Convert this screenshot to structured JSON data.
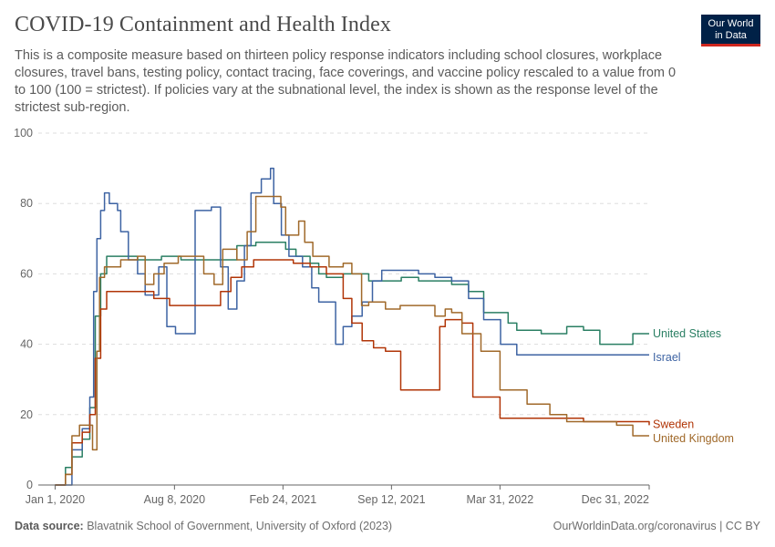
{
  "header": {
    "title": "COVID-19 Containment and Health Index",
    "subtitle": "This is a composite measure based on thirteen policy response indicators including school closures, workplace closures, travel bans, testing policy, contact tracing, face coverings, and vaccine policy rescaled to a value from 0 to 100 (100 = strictest). If policies vary at the subnational level, the index is shown as the response level of the strictest sub-region."
  },
  "logo": {
    "line1": "Our World",
    "line2": "in Data"
  },
  "footer": {
    "source_label": "Data source:",
    "source_text": "Blavatnik School of Government, University of Oxford (2023)",
    "right_text": "OurWorldinData.org/coronavirus | CC BY"
  },
  "colors": {
    "grid": "#dddddd",
    "axis": "#666666",
    "text": "#5b5b5b",
    "United States": "#2a7f63",
    "Israel": "#3d63a3",
    "Sweden": "#b13507",
    "United Kingdom": "#a0692a"
  },
  "chart_data": {
    "type": "line",
    "x_ticks": [
      "Jan 1, 2020",
      "Aug 8, 2020",
      "Feb 24, 2021",
      "Sep 12, 2021",
      "Mar 31, 2022",
      "Dec 31, 2022"
    ],
    "y_ticks": [
      "0",
      "20",
      "40",
      "60",
      "80",
      "100"
    ],
    "xlim": [
      "2019-12-01",
      "2022-12-31"
    ],
    "ylim": [
      0,
      100
    ],
    "grid": true,
    "legend": "end-of-line labels",
    "series": [
      {
        "name": "United States",
        "points": [
          [
            "2020-01-01",
            0
          ],
          [
            "2020-01-10",
            0
          ],
          [
            "2020-01-20",
            5
          ],
          [
            "2020-02-01",
            8
          ],
          [
            "2020-02-20",
            13
          ],
          [
            "2020-03-05",
            22
          ],
          [
            "2020-03-15",
            48
          ],
          [
            "2020-03-25",
            60
          ],
          [
            "2020-04-05",
            65
          ],
          [
            "2020-05-01",
            65
          ],
          [
            "2020-06-01",
            64
          ],
          [
            "2020-07-15",
            65
          ],
          [
            "2020-08-20",
            64
          ],
          [
            "2020-09-20",
            64
          ],
          [
            "2020-11-01",
            64
          ],
          [
            "2020-12-01",
            68
          ],
          [
            "2021-01-05",
            69
          ],
          [
            "2021-02-01",
            69
          ],
          [
            "2021-03-01",
            67
          ],
          [
            "2021-03-20",
            65
          ],
          [
            "2021-04-15",
            63
          ],
          [
            "2021-05-01",
            60
          ],
          [
            "2021-05-15",
            59
          ],
          [
            "2021-06-15",
            60
          ],
          [
            "2021-07-15",
            60
          ],
          [
            "2021-08-01",
            58
          ],
          [
            "2021-09-01",
            58
          ],
          [
            "2021-09-30",
            59
          ],
          [
            "2021-11-01",
            58
          ],
          [
            "2021-12-15",
            58
          ],
          [
            "2022-01-01",
            57
          ],
          [
            "2022-02-01",
            55
          ],
          [
            "2022-03-01",
            49
          ],
          [
            "2022-03-20",
            49
          ],
          [
            "2022-04-15",
            46
          ],
          [
            "2022-05-01",
            44
          ],
          [
            "2022-06-15",
            43
          ],
          [
            "2022-08-01",
            45
          ],
          [
            "2022-09-01",
            44
          ],
          [
            "2022-10-01",
            40
          ],
          [
            "2022-11-20",
            40
          ],
          [
            "2022-12-01",
            43
          ],
          [
            "2022-12-31",
            43
          ]
        ]
      },
      {
        "name": "Israel",
        "points": [
          [
            "2020-01-01",
            0
          ],
          [
            "2020-01-20",
            0
          ],
          [
            "2020-02-01",
            10
          ],
          [
            "2020-02-20",
            16
          ],
          [
            "2020-03-05",
            25
          ],
          [
            "2020-03-12",
            55
          ],
          [
            "2020-03-18",
            70
          ],
          [
            "2020-03-25",
            78
          ],
          [
            "2020-04-01",
            83
          ],
          [
            "2020-04-10",
            80
          ],
          [
            "2020-04-25",
            78
          ],
          [
            "2020-05-01",
            72
          ],
          [
            "2020-05-15",
            64
          ],
          [
            "2020-06-01",
            60
          ],
          [
            "2020-06-15",
            54
          ],
          [
            "2020-07-10",
            62
          ],
          [
            "2020-07-25",
            45
          ],
          [
            "2020-08-10",
            43
          ],
          [
            "2020-09-05",
            43
          ],
          [
            "2020-09-15",
            78
          ],
          [
            "2020-10-15",
            79
          ],
          [
            "2020-11-01",
            62
          ],
          [
            "2020-11-15",
            50
          ],
          [
            "2020-12-01",
            58
          ],
          [
            "2020-12-15",
            68
          ],
          [
            "2020-12-27",
            83
          ],
          [
            "2021-01-15",
            87
          ],
          [
            "2021-02-01",
            90
          ],
          [
            "2021-02-07",
            80
          ],
          [
            "2021-02-21",
            71
          ],
          [
            "2021-03-07",
            65
          ],
          [
            "2021-04-01",
            62
          ],
          [
            "2021-04-18",
            56
          ],
          [
            "2021-05-01",
            52
          ],
          [
            "2021-06-01",
            40
          ],
          [
            "2021-06-15",
            45
          ],
          [
            "2021-07-01",
            48
          ],
          [
            "2021-07-20",
            52
          ],
          [
            "2021-08-08",
            58
          ],
          [
            "2021-08-25",
            61
          ],
          [
            "2021-10-01",
            61
          ],
          [
            "2021-11-01",
            60
          ],
          [
            "2021-12-01",
            59
          ],
          [
            "2022-01-01",
            58
          ],
          [
            "2022-02-01",
            53
          ],
          [
            "2022-03-01",
            47
          ],
          [
            "2022-04-01",
            40
          ],
          [
            "2022-05-01",
            37
          ],
          [
            "2022-12-31",
            37
          ]
        ]
      },
      {
        "name": "Sweden",
        "points": [
          [
            "2020-01-01",
            0
          ],
          [
            "2020-01-20",
            3
          ],
          [
            "2020-02-01",
            12
          ],
          [
            "2020-02-20",
            15
          ],
          [
            "2020-03-05",
            20
          ],
          [
            "2020-03-15",
            36
          ],
          [
            "2020-03-25",
            50
          ],
          [
            "2020-04-05",
            55
          ],
          [
            "2020-06-01",
            55
          ],
          [
            "2020-07-01",
            53
          ],
          [
            "2020-07-30",
            51
          ],
          [
            "2020-10-01",
            51
          ],
          [
            "2020-11-01",
            55
          ],
          [
            "2020-11-20",
            59
          ],
          [
            "2020-12-10",
            62
          ],
          [
            "2021-01-01",
            64
          ],
          [
            "2021-02-15",
            64
          ],
          [
            "2021-03-15",
            63
          ],
          [
            "2021-04-15",
            62
          ],
          [
            "2021-05-15",
            60
          ],
          [
            "2021-06-15",
            53
          ],
          [
            "2021-07-01",
            46
          ],
          [
            "2021-07-20",
            41
          ],
          [
            "2021-08-10",
            39
          ],
          [
            "2021-09-01",
            38
          ],
          [
            "2021-09-29",
            27
          ],
          [
            "2021-11-01",
            27
          ],
          [
            "2021-12-01",
            27
          ],
          [
            "2021-12-10",
            45
          ],
          [
            "2021-12-20",
            47
          ],
          [
            "2022-01-01",
            47
          ],
          [
            "2022-01-20",
            46
          ],
          [
            "2022-02-09",
            25
          ],
          [
            "2022-03-01",
            25
          ],
          [
            "2022-03-31",
            19
          ],
          [
            "2022-06-01",
            19
          ],
          [
            "2022-09-01",
            18
          ],
          [
            "2022-12-31",
            17
          ]
        ]
      },
      {
        "name": "United Kingdom",
        "points": [
          [
            "2020-01-01",
            0
          ],
          [
            "2020-01-20",
            3
          ],
          [
            "2020-02-01",
            14
          ],
          [
            "2020-02-15",
            17
          ],
          [
            "2020-03-05",
            17
          ],
          [
            "2020-03-10",
            10
          ],
          [
            "2020-03-18",
            38
          ],
          [
            "2020-03-23",
            59
          ],
          [
            "2020-04-01",
            62
          ],
          [
            "2020-05-01",
            64
          ],
          [
            "2020-06-01",
            65
          ],
          [
            "2020-06-15",
            57
          ],
          [
            "2020-07-01",
            60
          ],
          [
            "2020-07-20",
            63
          ],
          [
            "2020-08-15",
            65
          ],
          [
            "2020-09-25",
            65
          ],
          [
            "2020-10-01",
            60
          ],
          [
            "2020-10-20",
            57
          ],
          [
            "2020-11-05",
            67
          ],
          [
            "2020-12-01",
            64
          ],
          [
            "2020-12-20",
            72
          ],
          [
            "2021-01-05",
            82
          ],
          [
            "2021-02-01",
            82
          ],
          [
            "2021-02-20",
            79
          ],
          [
            "2021-03-01",
            71
          ],
          [
            "2021-03-25",
            75
          ],
          [
            "2021-04-05",
            69
          ],
          [
            "2021-04-20",
            65
          ],
          [
            "2021-05-20",
            62
          ],
          [
            "2021-06-15",
            63
          ],
          [
            "2021-07-01",
            60
          ],
          [
            "2021-07-19",
            51
          ],
          [
            "2021-08-01",
            52
          ],
          [
            "2021-09-01",
            50
          ],
          [
            "2021-09-28",
            51
          ],
          [
            "2021-11-01",
            51
          ],
          [
            "2021-12-01",
            48
          ],
          [
            "2021-12-20",
            50
          ],
          [
            "2022-01-01",
            49
          ],
          [
            "2022-01-20",
            43
          ],
          [
            "2022-02-24",
            38
          ],
          [
            "2022-03-31",
            27
          ],
          [
            "2022-04-15",
            27
          ],
          [
            "2022-05-20",
            23
          ],
          [
            "2022-07-01",
            20
          ],
          [
            "2022-08-01",
            18
          ],
          [
            "2022-11-01",
            17
          ],
          [
            "2022-12-01",
            14
          ],
          [
            "2022-12-31",
            14
          ]
        ]
      }
    ]
  }
}
